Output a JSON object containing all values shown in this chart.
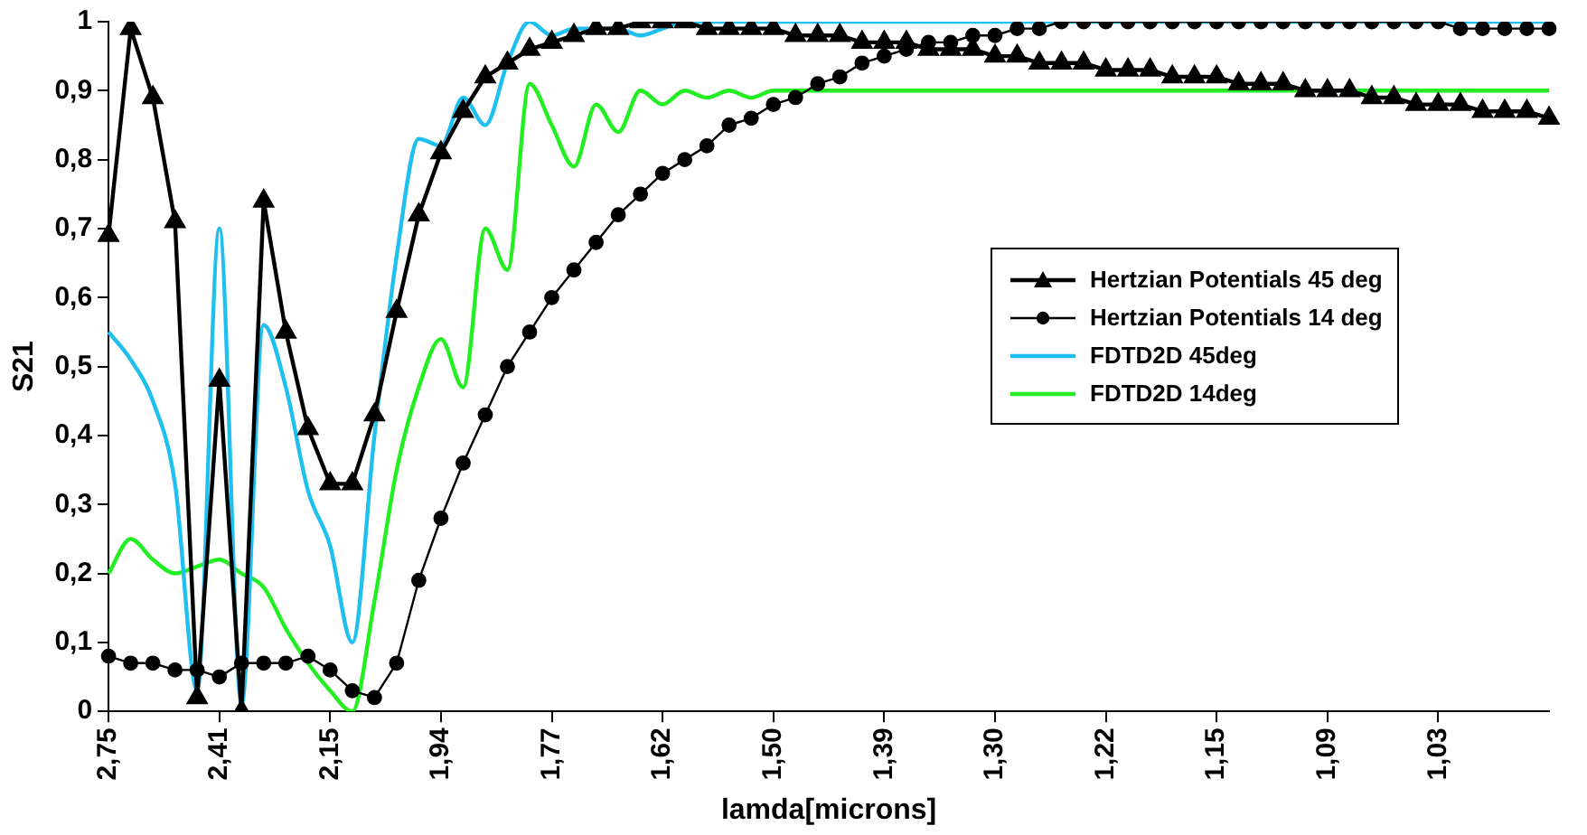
{
  "chart_data": {
    "type": "line",
    "xlabel": "lamda[microns]",
    "ylabel": "S21",
    "categories": [
      "2,75",
      null,
      null,
      null,
      null,
      "2,41",
      null,
      null,
      null,
      null,
      "2,15",
      null,
      null,
      null,
      null,
      "1,94",
      null,
      null,
      null,
      null,
      "1,77",
      null,
      null,
      null,
      null,
      "1,62",
      null,
      null,
      null,
      null,
      "1,50",
      null,
      null,
      null,
      null,
      "1,39",
      null,
      null,
      null,
      null,
      "1,30",
      null,
      null,
      null,
      null,
      "1,22",
      null,
      null,
      null,
      null,
      "1,15",
      null,
      null,
      null,
      null,
      "1,09",
      null,
      null,
      null,
      null,
      "1,03",
      null,
      null,
      null,
      null,
      null
    ],
    "series": [
      {
        "name": "Hertzian Potentials 45 deg",
        "color": "#000000",
        "marker": "triangle",
        "values": [
          0.69,
          0.99,
          0.89,
          0.71,
          0.02,
          0.48,
          0,
          0.74,
          0.55,
          0.41,
          0.33,
          0.33,
          0.43,
          0.58,
          0.72,
          0.81,
          0.87,
          0.92,
          0.94,
          0.96,
          0.97,
          0.98,
          0.99,
          0.99,
          1,
          1,
          1,
          0.99,
          0.99,
          0.99,
          0.99,
          0.98,
          0.98,
          0.98,
          0.97,
          0.97,
          0.97,
          0.96,
          0.96,
          0.96,
          0.95,
          0.95,
          0.94,
          0.94,
          0.94,
          0.93,
          0.93,
          0.93,
          0.92,
          0.92,
          0.92,
          0.91,
          0.91,
          0.91,
          0.9,
          0.9,
          0.9,
          0.89,
          0.89,
          0.88,
          0.88,
          0.88,
          0.87,
          0.87,
          0.87,
          0.86
        ]
      },
      {
        "name": "Hertzian Potentials 14 deg",
        "color": "#000000",
        "marker": "circle",
        "values": [
          0.08,
          0.07,
          0.07,
          0.06,
          0.06,
          0.05,
          0.07,
          0.07,
          0.07,
          0.08,
          0.06,
          0.03,
          0.02,
          0.07,
          0.19,
          0.28,
          0.36,
          0.43,
          0.5,
          0.55,
          0.6,
          0.64,
          0.68,
          0.72,
          0.75,
          0.78,
          0.8,
          0.82,
          0.85,
          0.86,
          0.88,
          0.89,
          0.91,
          0.92,
          0.94,
          0.95,
          0.96,
          0.97,
          0.97,
          0.98,
          0.98,
          0.99,
          0.99,
          1,
          1,
          1,
          1,
          1,
          1,
          1,
          1,
          1,
          1,
          1,
          1,
          1,
          1,
          1,
          1,
          1,
          1,
          0.99,
          0.99,
          0.99,
          0.99,
          0.99
        ]
      },
      {
        "name": "FDTD2D 45deg",
        "color": "#1fbfef",
        "marker": "none",
        "values": [
          0.55,
          0.51,
          0.45,
          0.33,
          0.03,
          0.7,
          0.01,
          0.56,
          0.47,
          0.32,
          0.24,
          0.1,
          0.4,
          0.66,
          0.83,
          0.82,
          0.89,
          0.85,
          0.94,
          1,
          0.98,
          0.99,
          0.99,
          0.99,
          0.98,
          0.99,
          1,
          1,
          1,
          1,
          1,
          1,
          1,
          1,
          1,
          1,
          1,
          1,
          1,
          1,
          1,
          1,
          1,
          1,
          1,
          1,
          1,
          1,
          1,
          1,
          1,
          1,
          1,
          1,
          1,
          1,
          1,
          1,
          1,
          1,
          1,
          1,
          1,
          1,
          1,
          1
        ]
      },
      {
        "name": "FDTD2D 14deg",
        "color": "#22ee22",
        "marker": "none",
        "values": [
          0.2,
          0.25,
          0.22,
          0.2,
          0.21,
          0.22,
          0.2,
          0.18,
          0.12,
          0.07,
          0.03,
          0,
          0.16,
          0.35,
          0.47,
          0.54,
          0.47,
          0.7,
          0.64,
          0.91,
          0.85,
          0.79,
          0.88,
          0.84,
          0.9,
          0.88,
          0.9,
          0.89,
          0.9,
          0.89,
          0.9,
          0.9,
          0.9,
          0.9,
          0.9,
          0.9,
          0.9,
          0.9,
          0.9,
          0.9,
          0.9,
          0.9,
          0.9,
          0.9,
          0.9,
          0.9,
          0.9,
          0.9,
          0.9,
          0.9,
          0.9,
          0.9,
          0.9,
          0.9,
          0.9,
          0.9,
          0.9,
          0.9,
          0.9,
          0.9,
          0.9,
          0.9,
          0.9,
          0.9,
          0.9,
          0.9
        ]
      }
    ],
    "ylim": [
      0,
      1
    ],
    "yticks": [
      0,
      {
        "value": 0.1,
        "label": "0,1"
      },
      {
        "value": 0.2,
        "label": "0,2"
      },
      {
        "value": 0.3,
        "label": "0,3"
      },
      {
        "value": 0.4,
        "label": "0,4"
      },
      {
        "value": 0.5,
        "label": "0,5"
      },
      {
        "value": 0.6,
        "label": "0,6"
      },
      {
        "value": 0.7,
        "label": "0,7"
      },
      {
        "value": 0.8,
        "label": "0,8"
      },
      {
        "value": 0.9,
        "label": "0,9"
      },
      1
    ],
    "legend": "right"
  }
}
